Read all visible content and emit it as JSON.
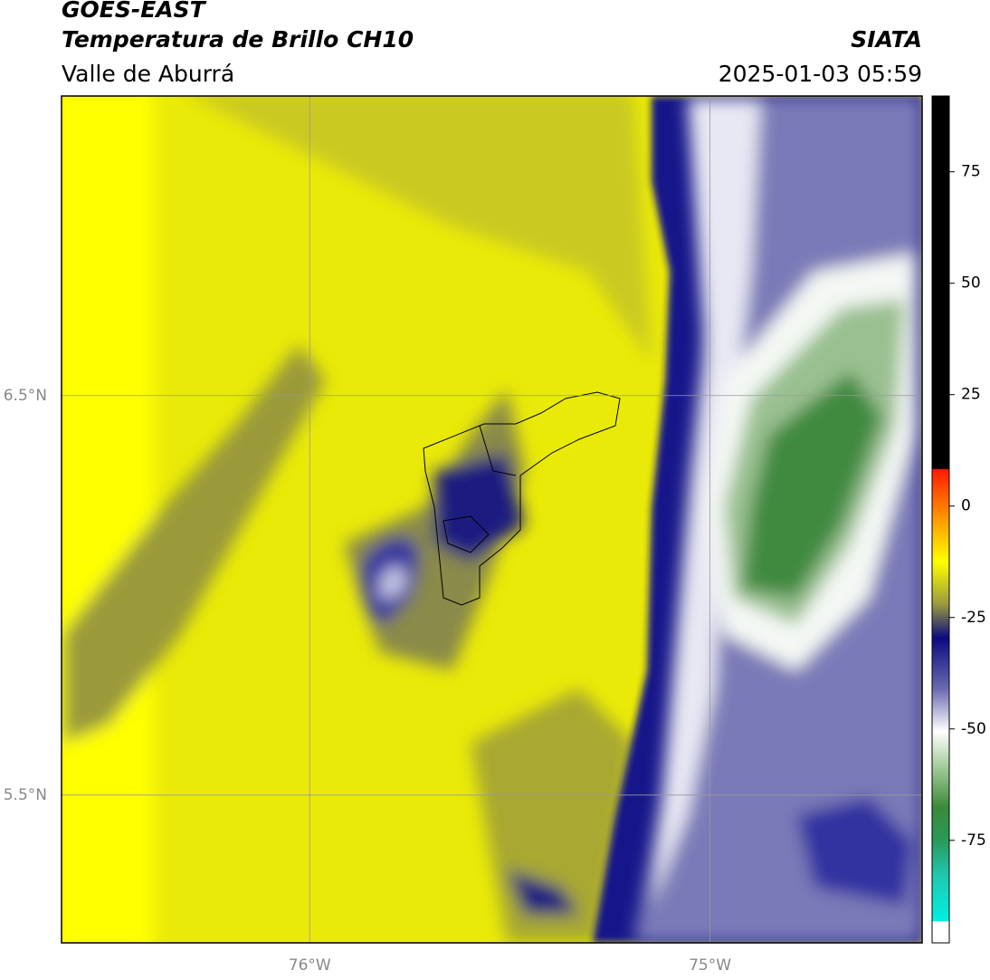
{
  "header": {
    "title": "GOES-EAST",
    "subtitle": "Temperatura de Brillo CH10",
    "region": "Valle de Aburrá",
    "source": "SIATA",
    "timestamp": "2025-01-03 05:59"
  },
  "map": {
    "lon_range": [
      -76.62,
      -74.47
    ],
    "lat_range": [
      5.13,
      7.25
    ],
    "lon_ticks": [
      {
        "value": -76,
        "label": "76°W"
      },
      {
        "value": -75,
        "label": "75°W"
      }
    ],
    "lat_ticks": [
      {
        "value": 6.5,
        "label": "6.5°N"
      },
      {
        "value": 5.5,
        "label": "5.5°N"
      }
    ]
  },
  "colorbar": {
    "range": [
      -98,
      92
    ],
    "ticks": [
      75,
      50,
      25,
      0,
      -25,
      -50,
      -75
    ]
  }
}
